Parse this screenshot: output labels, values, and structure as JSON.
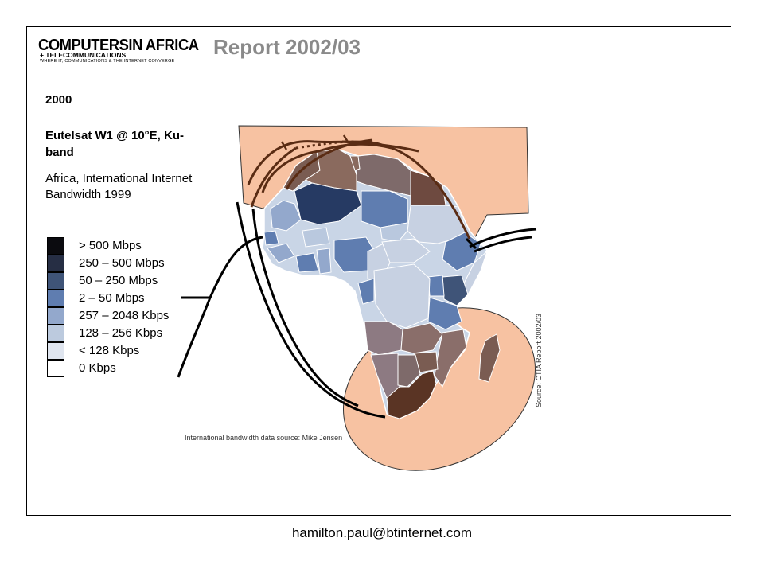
{
  "logo": {
    "line1": "COMPUTERSIN AFRICA",
    "line2": "+ TELECOMMUNICATIONS",
    "line3": "WHERE IT, COMMUNICATIONS & THE INTERNET CONVERGE"
  },
  "title": "Report 2002/03",
  "year": "2000",
  "satellite": "Eutelsat W1 @ 10°E, Ku-band",
  "caption": "Africa, International Internet Bandwidth 1999",
  "legend": [
    {
      "label": "> 500 Mbps",
      "color": "#0b0b0f"
    },
    {
      "label": "250 – 500 Mbps",
      "color": "#262e44"
    },
    {
      "label": "50 – 250 Mbps",
      "color": "#3f5478"
    },
    {
      "label": "2 – 50 Mbps",
      "color": "#5f7db0"
    },
    {
      "label": "257 – 2048 Kbps",
      "color": "#93a8cc"
    },
    {
      "label": "128 – 256 Kbps",
      "color": "#bccade"
    },
    {
      "label": "< 128 Kbps",
      "color": "#dfe5ef"
    },
    {
      "label": "0 Kbps",
      "color": "#ffffff"
    }
  ],
  "source_ctia": "Source: CTIA Report 2002/03",
  "source_data": "International bandwidth data source: Mike Jensen",
  "footer_email": "hamilton.paul@btinternet.com",
  "colors": {
    "footprint": "#f7c2a2",
    "coverage_line": "#5a2c14",
    "outline": "#000000"
  }
}
